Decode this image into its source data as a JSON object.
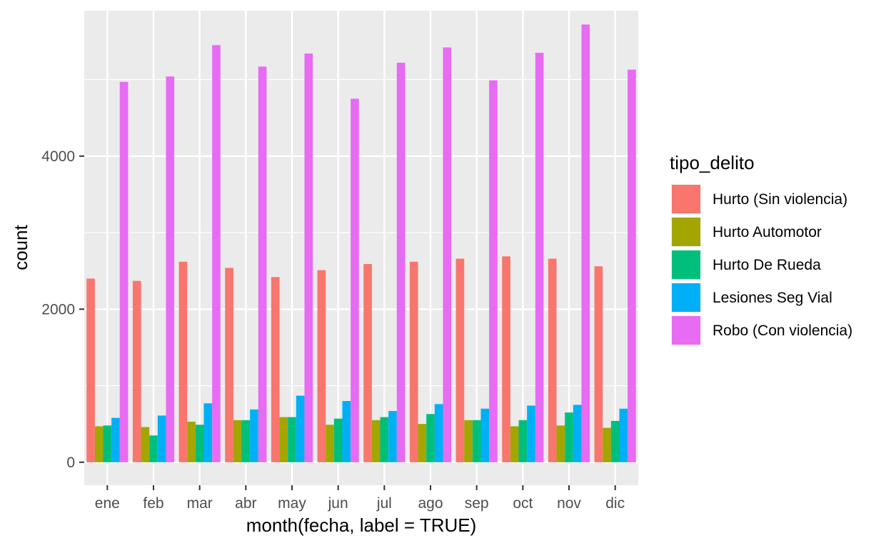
{
  "chart_data": {
    "type": "bar",
    "title": "",
    "xlabel": "month(fecha, label = TRUE)",
    "ylabel": "count",
    "ylim": [
      -300,
      5900
    ],
    "yticks": [
      0,
      2000,
      4000
    ],
    "grid": true,
    "legend_position": "right",
    "legend_title": "tipo_delito",
    "categories": [
      "ene",
      "feb",
      "mar",
      "abr",
      "may",
      "jun",
      "jul",
      "ago",
      "sep",
      "oct",
      "nov",
      "dic"
    ],
    "series": [
      {
        "name": "Hurto (Sin violencia)",
        "color": "#F8766D",
        "values": [
          2400,
          2370,
          2620,
          2540,
          2420,
          2510,
          2590,
          2620,
          2660,
          2690,
          2660,
          2560
        ]
      },
      {
        "name": "Hurto Automotor",
        "color": "#A3A500",
        "values": [
          470,
          460,
          530,
          550,
          590,
          490,
          550,
          500,
          550,
          470,
          480,
          450
        ]
      },
      {
        "name": "Hurto De Rueda",
        "color": "#00BF7D",
        "values": [
          480,
          350,
          490,
          550,
          590,
          570,
          590,
          630,
          550,
          550,
          650,
          540
        ]
      },
      {
        "name": "Lesiones Seg Vial",
        "color": "#00B0F6",
        "values": [
          580,
          610,
          770,
          690,
          870,
          800,
          670,
          760,
          700,
          740,
          750,
          700
        ]
      },
      {
        "name": "Robo (Con violencia)",
        "color": "#E76BF3",
        "values": [
          4970,
          5040,
          5450,
          5170,
          5340,
          4750,
          5220,
          5420,
          4990,
          5350,
          5720,
          5130
        ]
      }
    ]
  }
}
